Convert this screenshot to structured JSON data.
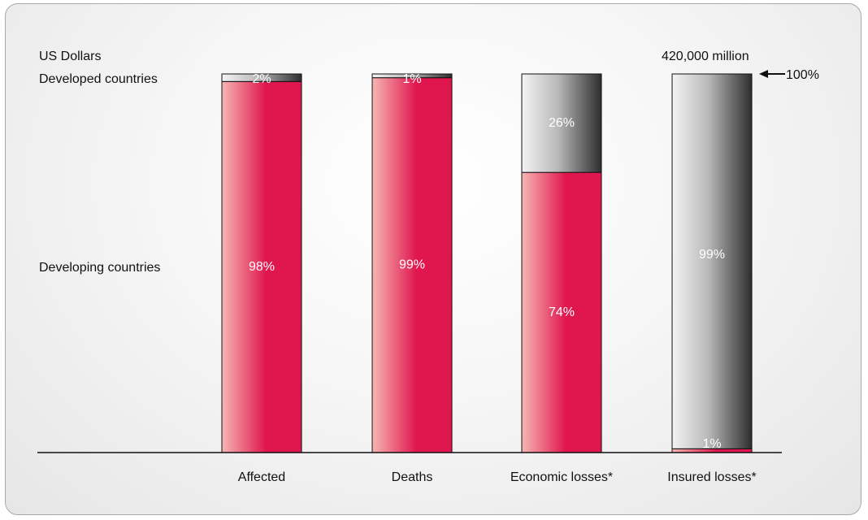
{
  "labels": {
    "currency": "US Dollars",
    "developed": "Developed countries",
    "developing": "Developing countries",
    "total": "420,000 million",
    "pointer": "100%"
  },
  "colors": {
    "developing": "#e0174f",
    "developed_dark": "#3a3a3a"
  },
  "chart_data": {
    "type": "bar",
    "stacked": true,
    "normalized": true,
    "categories": [
      "Affected",
      "Deaths",
      "Economic losses*",
      "Insured losses*"
    ],
    "series": [
      {
        "name": "Developing countries",
        "values": [
          98,
          99,
          74,
          1
        ],
        "labels": [
          "98%",
          "99%",
          "74%",
          "1%"
        ]
      },
      {
        "name": "Developed countries",
        "values": [
          2,
          1,
          26,
          99
        ],
        "labels": [
          "2%",
          "1%",
          "26%",
          "99%"
        ]
      }
    ],
    "ylim": [
      0,
      100
    ],
    "grid": false,
    "annotations": [
      "420,000 million",
      "100%"
    ]
  }
}
